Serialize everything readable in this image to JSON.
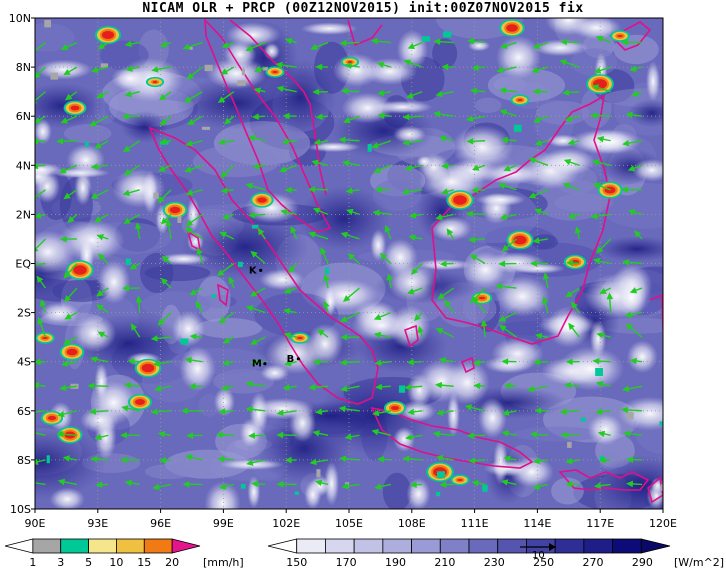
{
  "title": "NICAM OLR + PRCP (00Z12NOV2015) init:00Z07NOV2015 fix",
  "map": {
    "lon_range": [
      90,
      120
    ],
    "lat_range": [
      -10,
      10
    ],
    "lon_ticks": [
      {
        "value": 90,
        "label": "90E"
      },
      {
        "value": 93,
        "label": "93E"
      },
      {
        "value": 96,
        "label": "96E"
      },
      {
        "value": 99,
        "label": "99E"
      },
      {
        "value": 102,
        "label": "102E"
      },
      {
        "value": 105,
        "label": "105E"
      },
      {
        "value": 108,
        "label": "108E"
      },
      {
        "value": 111,
        "label": "111E"
      },
      {
        "value": 114,
        "label": "114E"
      },
      {
        "value": 117,
        "label": "117E"
      },
      {
        "value": 120,
        "label": "120E"
      }
    ],
    "lat_ticks": [
      {
        "value": 10,
        "label": "10N"
      },
      {
        "value": 8,
        "label": "8N"
      },
      {
        "value": 6,
        "label": "6N"
      },
      {
        "value": 4,
        "label": "4N"
      },
      {
        "value": 2,
        "label": "2N"
      },
      {
        "value": 0,
        "label": "EQ"
      },
      {
        "value": -2,
        "label": "2S"
      },
      {
        "value": -4,
        "label": "4S"
      },
      {
        "value": -6,
        "label": "6S"
      },
      {
        "value": -8,
        "label": "8S"
      },
      {
        "value": -10,
        "label": "10S"
      }
    ],
    "stations": [
      {
        "label": "K",
        "lon": 100.4,
        "lat": -0.2
      },
      {
        "label": "M",
        "lon": 100.6,
        "lat": -4.0
      },
      {
        "label": "B",
        "lon": 102.2,
        "lat": -3.8
      }
    ],
    "colors": {
      "coast": "#e0108a",
      "wind": "#22cc22",
      "grid": "#999999"
    }
  },
  "prcp_colorbar": {
    "labels": [
      "1",
      "3",
      "5",
      "10",
      "15",
      "20"
    ],
    "unit": "[mm/h]",
    "colors": [
      "#a6a6a6",
      "#00c896",
      "#f5e68c",
      "#f0c040",
      "#f07a14",
      "#e61e1e",
      "#e6148c"
    ]
  },
  "olr_colorbar": {
    "labels": [
      "150",
      "170",
      "190",
      "210",
      "230",
      "250",
      "270",
      "290"
    ],
    "unit": "[W/m^2]",
    "ref_vector_label": "10",
    "colors": [
      "#ffffff",
      "#ebebf5",
      "#d6d6ee",
      "#c2c2e6",
      "#aeaede",
      "#9a9ad6",
      "#8080c8",
      "#6a6abc",
      "#5555b0",
      "#4242a4",
      "#2e2e96",
      "#1e1e88",
      "#0c0c78"
    ]
  }
}
